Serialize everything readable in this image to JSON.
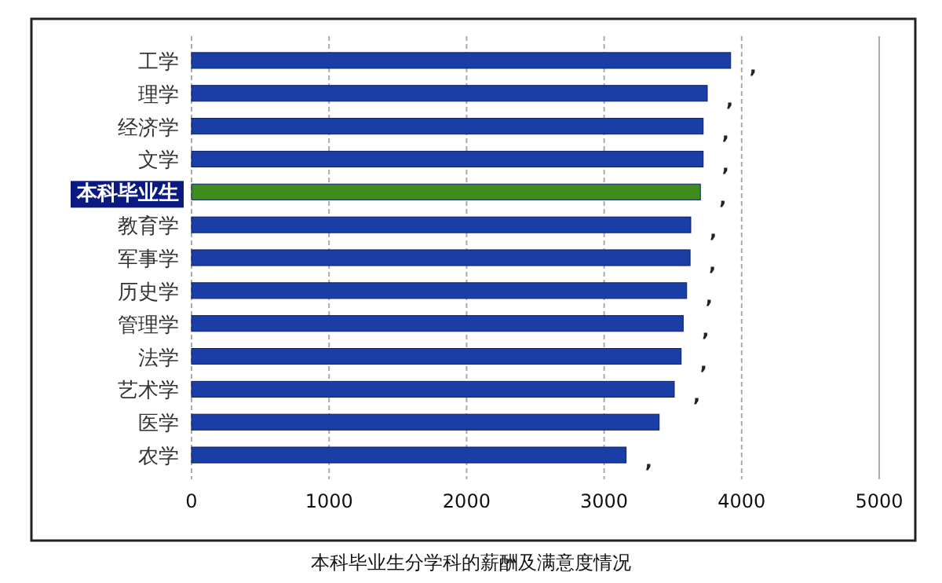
{
  "chart_data": {
    "type": "bar",
    "orientation": "horizontal",
    "categories": [
      "工学",
      "理学",
      "经济学",
      "文学",
      "本科毕业生",
      "教育学",
      "军事学",
      "历史学",
      "管理学",
      "法学",
      "艺术学",
      "医学",
      "农学"
    ],
    "values": [
      3920,
      3750,
      3720,
      3720,
      3700,
      3630,
      3625,
      3600,
      3575,
      3560,
      3510,
      3400,
      3160
    ],
    "colors": [
      "#1a3da6",
      "#1a3da6",
      "#1a3da6",
      "#1a3da6",
      "#3f8c1c",
      "#1a3da6",
      "#1a3da6",
      "#1a3da6",
      "#1a3da6",
      "#1a3da6",
      "#1a3da6",
      "#1a3da6",
      "#1a3da6"
    ],
    "value_labels": [
      ",",
      ",",
      ",",
      ",",
      ",",
      ",",
      ",",
      ",",
      ",",
      ",",
      ",",
      null,
      ","
    ],
    "xlim": [
      0,
      5000
    ],
    "xticks": [
      0,
      1000,
      2000,
      3000,
      4000,
      5000
    ],
    "grid": "x",
    "annotations": [
      "本科毕业生分学科的薪酬及满意度情况"
    ]
  }
}
